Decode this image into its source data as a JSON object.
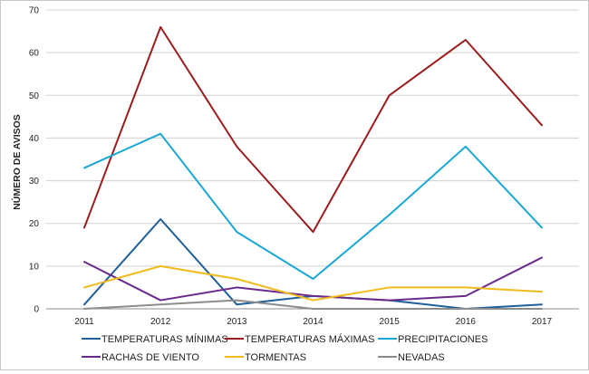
{
  "chart_data": {
    "type": "line",
    "title": "",
    "xlabel": "",
    "ylabel": "NÚMERO DE AVISOS",
    "ylim": [
      0,
      70
    ],
    "y_ticks": [
      0,
      10,
      20,
      30,
      40,
      50,
      60,
      70
    ],
    "grid": "horizontal",
    "legend_position": "bottom",
    "categories": [
      "2011",
      "2012",
      "2013",
      "2014",
      "2015",
      "2016",
      "2017"
    ],
    "series": [
      {
        "name": "TEMPERATURAS MÍNIMAS",
        "color": "#1f5f9a",
        "values": [
          1,
          21,
          1,
          3,
          2,
          0,
          1
        ]
      },
      {
        "name": "TEMPERATURAS MÁXIMAS",
        "color": "#9b1c1c",
        "values": [
          19,
          66,
          38,
          18,
          50,
          63,
          43
        ]
      },
      {
        "name": "PRECIPITACIONES",
        "color": "#1aa7d6",
        "values": [
          33,
          41,
          18,
          7,
          22,
          38,
          19
        ]
      },
      {
        "name": "RACHAS DE VIENTO",
        "color": "#6a2a8c",
        "values": [
          11,
          2,
          5,
          3,
          2,
          3,
          12
        ]
      },
      {
        "name": "TORMENTAS",
        "color": "#f2bb1c",
        "values": [
          5,
          10,
          7,
          2,
          5,
          5,
          4
        ]
      },
      {
        "name": "NEVADAS",
        "color": "#8c8c8c",
        "values": [
          0,
          1,
          2,
          0,
          0,
          0,
          0
        ]
      }
    ]
  }
}
